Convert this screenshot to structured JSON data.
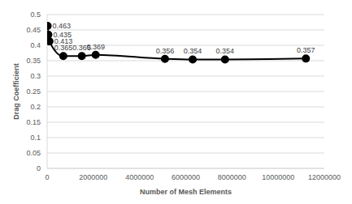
{
  "chart_data": {
    "type": "line",
    "xlabel": "Number of Mesh Elements",
    "ylabel": "Drag Coefficient",
    "x": [
      20000,
      50000,
      100000,
      700000,
      1500000,
      2100000,
      5100000,
      6300000,
      7700000,
      11200000
    ],
    "values": [
      0.463,
      0.435,
      0.413,
      0.365,
      0.365,
      0.369,
      0.356,
      0.354,
      0.354,
      0.357
    ],
    "color": "#000000",
    "marker": "circle",
    "line_style": "solid",
    "xlim": [
      0,
      12000000
    ],
    "xticks": [
      0,
      2000000,
      4000000,
      6000000,
      8000000,
      10000000,
      12000000
    ],
    "ylim": [
      0,
      0.5
    ],
    "yticks": [
      0,
      0.05,
      0.1,
      0.15,
      0.2,
      0.25,
      0.3,
      0.35,
      0.4,
      0.45,
      0.5
    ],
    "grid": true,
    "data_labels": true
  }
}
